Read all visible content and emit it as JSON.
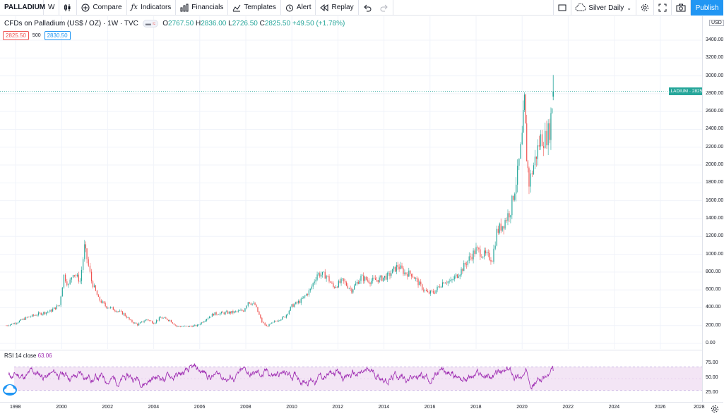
{
  "toolbar": {
    "symbol": "PALLADIUM",
    "interval": "W",
    "compare": "Compare",
    "indicators": "Indicators",
    "financials": "Financials",
    "templates": "Templates",
    "alert": "Alert",
    "replay": "Replay",
    "layout_name": "Silver Daily",
    "publish": "Publish"
  },
  "legend": {
    "title": "CFDs on Palladium (US$ / OZ) · 1W · TVC",
    "open_k": "O",
    "open": "2767.50",
    "high_k": "H",
    "high": "2836.00",
    "low_k": "L",
    "low": "2726.50",
    "close_k": "C",
    "close": "2825.50",
    "change": "+49.50 (+1.78%)",
    "bid": "2825.50",
    "spread": "500",
    "ask": "2830.50"
  },
  "price_scale": {
    "currency": "USD",
    "ticks": [
      "3400.00",
      "3200.00",
      "3000.00",
      "2800.00",
      "2600.00",
      "2400.00",
      "2200.00",
      "2000.00",
      "1800.00",
      "1600.00",
      "1400.00",
      "1200.00",
      "1000.00",
      "800.00",
      "600.00",
      "400.00",
      "200.00",
      "0.00"
    ],
    "last_label": "PALLADIUM · 2825.50",
    "rsi_ticks": [
      "75.00",
      "50.00",
      "25.00"
    ]
  },
  "time_axis": {
    "ticks": [
      "1998",
      "2000",
      "2002",
      "2004",
      "2006",
      "2008",
      "2010",
      "2012",
      "2014",
      "2016",
      "2018",
      "2020",
      "2022",
      "2024",
      "2026",
      "2028"
    ]
  },
  "rsi": {
    "label": "RSI 14 close",
    "value": "63.06",
    "upper": 70,
    "lower": 30
  },
  "colors": {
    "up": "#26a69a",
    "down": "#ef5350",
    "rsi_line": "#9c27b0",
    "rsi_band": "#f3e5f5",
    "accent": "#2196f3"
  },
  "chart_data": {
    "type": "candlestick",
    "x_range": [
      1997.5,
      2028
    ],
    "y_range": [
      0,
      3400
    ],
    "x": [
      1997.6,
      1998.0,
      1998.5,
      1999.0,
      1999.5,
      1999.9,
      2000.1,
      2000.3,
      2000.5,
      2000.8,
      2001.0,
      2001.1,
      2001.3,
      2001.6,
      2001.9,
      2002.3,
      2002.7,
      2003.0,
      2003.3,
      2003.7,
      2004.0,
      2004.3,
      2004.7,
      2005.0,
      2005.5,
      2005.9,
      2006.3,
      2006.6,
      2007.0,
      2007.5,
      2007.9,
      2008.1,
      2008.4,
      2008.7,
      2008.9,
      2009.3,
      2009.7,
      2010.0,
      2010.4,
      2010.8,
      2011.1,
      2011.5,
      2011.8,
      2012.2,
      2012.6,
      2013.0,
      2013.4,
      2013.8,
      2014.2,
      2014.6,
      2014.9,
      2015.2,
      2015.6,
      2015.9,
      2016.2,
      2016.6,
      2016.9,
      2017.3,
      2017.7,
      2018.0,
      2018.3,
      2018.7,
      2018.9,
      2019.2,
      2019.5,
      2019.8,
      2020.0,
      2020.1,
      2020.2,
      2020.3,
      2020.5,
      2020.8,
      2021.0,
      2021.2,
      2021.35
    ],
    "close": [
      200,
      230,
      290,
      330,
      360,
      430,
      760,
      650,
      800,
      700,
      1080,
      950,
      700,
      500,
      420,
      380,
      330,
      250,
      210,
      270,
      230,
      290,
      260,
      190,
      190,
      200,
      280,
      330,
      340,
      350,
      370,
      470,
      430,
      240,
      190,
      250,
      300,
      420,
      480,
      600,
      780,
      760,
      630,
      700,
      600,
      740,
      700,
      720,
      760,
      870,
      790,
      780,
      640,
      560,
      580,
      700,
      690,
      800,
      950,
      1050,
      1000,
      950,
      1250,
      1350,
      1500,
      1900,
      2300,
      2700,
      2100,
      1800,
      2000,
      2300,
      2300,
      2400,
      2825.5
    ]
  }
}
